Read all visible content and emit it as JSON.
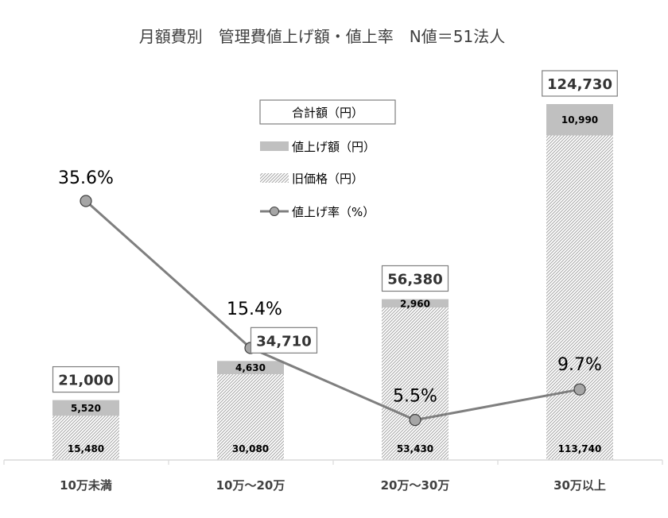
{
  "chart_data": {
    "type": "bar",
    "title": "月額費別　管理費値上げ額・値上率　N値＝51法人",
    "categories": [
      "10万未満",
      "10万～20万",
      "20万～30万",
      "30万以上"
    ],
    "series": [
      {
        "name": "旧価格（円）",
        "values": [
          15480,
          30080,
          53430,
          113740
        ],
        "labels": [
          "15,480",
          "30,080",
          "53,430",
          "113,740"
        ]
      },
      {
        "name": "値上げ額（円）",
        "values": [
          5520,
          4630,
          2960,
          10990
        ],
        "labels": [
          "5,520",
          "4,630",
          "2,960",
          "10,990"
        ]
      },
      {
        "name": "合計額（円）",
        "values": [
          21000,
          34710,
          56380,
          124730
        ],
        "labels": [
          "21,000",
          "34,710",
          "56,380",
          "124,730"
        ]
      },
      {
        "name": "値上げ率（%）",
        "values": [
          35.6,
          15.4,
          5.5,
          9.7
        ],
        "labels": [
          "35.6%",
          "15.4%",
          "5.5%",
          "9.7%"
        ]
      }
    ],
    "legend": {
      "position": "center-top",
      "items": [
        "合計額（円）",
        "値上げ額（円）",
        "旧価格（円）",
        "値上げ率（%）"
      ]
    },
    "colors": {
      "increase": "#c0c0c0",
      "old_price_hatch": "#a6a6a6",
      "line": "#7f7f7f",
      "marker": "#a6a6a6",
      "marker_edge": "#404040",
      "axis": "#d9d9d9",
      "label_box_border": "#7f7f7f"
    },
    "grid": false
  }
}
